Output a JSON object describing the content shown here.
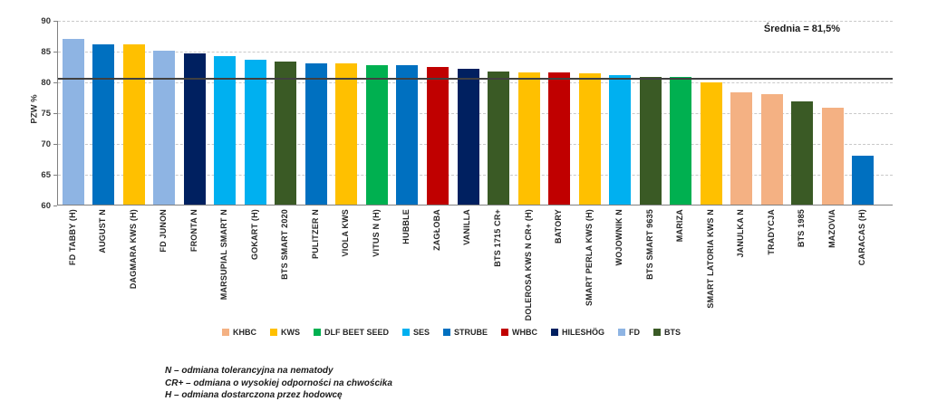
{
  "chart_data": {
    "type": "bar",
    "title": "",
    "xlabel": "",
    "ylabel": "PZW %",
    "ylim": [
      60,
      90
    ],
    "yticks": [
      60,
      65,
      70,
      75,
      80,
      85,
      90
    ],
    "grid": "horizontal-dashed",
    "legend_position": "bottom",
    "average_line": {
      "label": "Średnia = 81,5%",
      "value": 81.5,
      "line_position": 80.8
    },
    "categories": [
      "FD TABBY (H)",
      "AUGUST N",
      "DAGMARA KWS (H)",
      "FD JUNON",
      "FRONTA N",
      "MARSUPIAL SMART N",
      "GOKART (H)",
      "BTS SMART 2020",
      "PULITZER N",
      "VIOLA KWS",
      "VITUS N (H)",
      "HUBBLE",
      "ZAGŁOBA",
      "VANILLA",
      "BTS 1715 CR+",
      "DOLEROSA KWS N CR+ (H)",
      "BATORY",
      "SMART PERLA KWS (H)",
      "WOJOWNIK N",
      "BTS SMART 9635",
      "MARIZA",
      "SMART LATORIA KWS N",
      "JANULKA N",
      "TRADYCJA",
      "BTS 1985",
      "MAZOVIA",
      "CARACAS (H)"
    ],
    "values": [
      86.9,
      86.1,
      86.0,
      85.0,
      84.5,
      84.1,
      83.5,
      83.2,
      82.9,
      82.9,
      82.7,
      82.6,
      82.3,
      82.1,
      81.6,
      81.4,
      81.4,
      81.3,
      81.1,
      80.8,
      80.7,
      79.8,
      78.3,
      77.9,
      76.7,
      75.8,
      67.9
    ],
    "bar_brands": [
      "FD",
      "STRUBE",
      "KWS",
      "FD",
      "HILESHÖG",
      "SES",
      "SES",
      "BTS",
      "STRUBE",
      "KWS",
      "DLF BEET SEED",
      "STRUBE",
      "WHBC",
      "HILESHÖG",
      "BTS",
      "KWS",
      "WHBC",
      "KWS",
      "SES",
      "BTS",
      "DLF BEET SEED",
      "KWS",
      "KHBC",
      "KHBC",
      "BTS",
      "KHBC",
      "STRUBE"
    ],
    "legend": {
      "items": [
        {
          "name": "KHBC",
          "color": "#F4B183"
        },
        {
          "name": "KWS",
          "color": "#FFC000"
        },
        {
          "name": "DLF BEET SEED",
          "color": "#00B050"
        },
        {
          "name": "SES",
          "color": "#00B0F0"
        },
        {
          "name": "STRUBE",
          "color": "#0070C0"
        },
        {
          "name": "WHBC",
          "color": "#C00000"
        },
        {
          "name": "HILESHÖG",
          "color": "#002060"
        },
        {
          "name": "FD",
          "color": "#8EB4E3"
        },
        {
          "name": "BTS",
          "color": "#3A5A25"
        }
      ]
    },
    "footnotes": [
      "N – odmiana tolerancyjna na nematody",
      "CR+ – odmiana o wysokiej odporności na chwościka",
      "H – odmiana dostarczona przez hodowcę"
    ],
    "colors": {
      "gridline": "#C9C9C9",
      "axis": "#808080",
      "average_line": "#404040",
      "text": "#262626",
      "background": "#FFFFFF"
    }
  }
}
